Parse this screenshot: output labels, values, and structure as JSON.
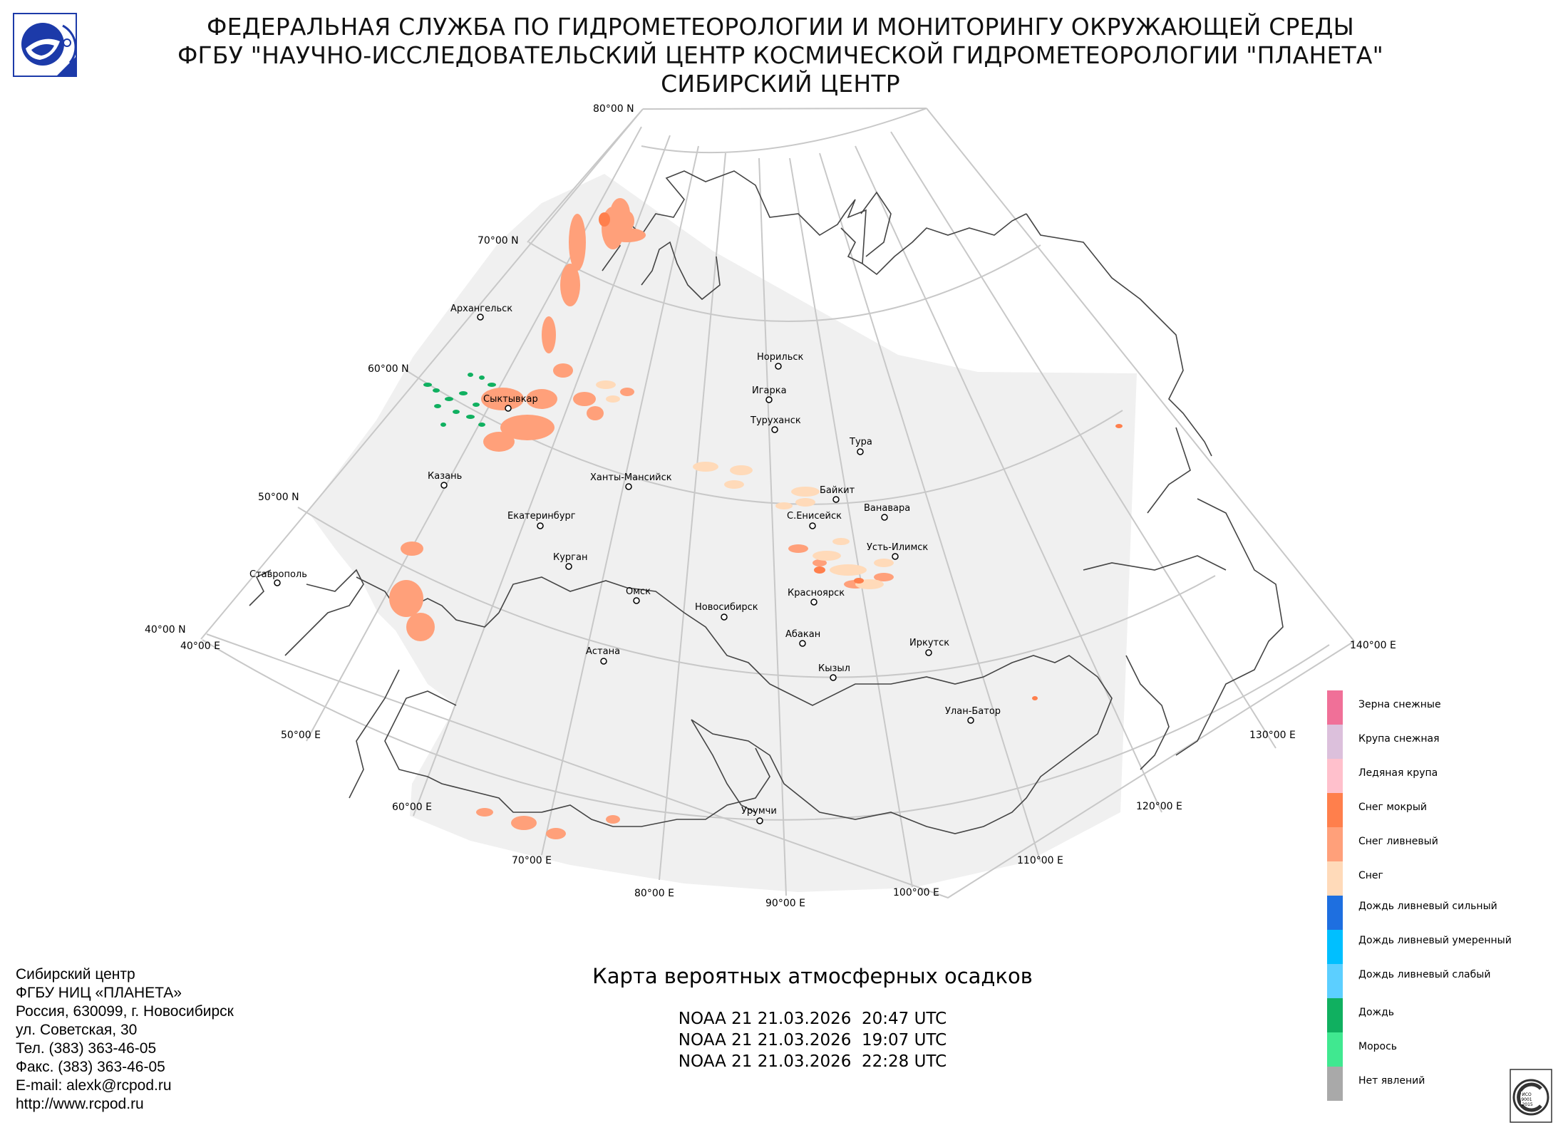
{
  "header": {
    "line1": "ФЕДЕРАЛЬНАЯ СЛУЖБА ПО ГИДРОМЕТЕОРОЛОГИИ И МОНИТОРИНГУ ОКРУЖАЮЩЕЙ СРЕДЫ",
    "line2": "ФГБУ \"НАУЧНО-ИССЛЕДОВАТЕЛЬСКИЙ ЦЕНТР КОСМИЧЕСКОЙ ГИДРОМЕТЕОРОЛОГИИ \"ПЛАНЕТА\"",
    "line3": "СИБИРСКИЙ ЦЕНТР"
  },
  "grid_labels": {
    "lat80": "80°00 N",
    "lat70": "70°00 N",
    "lat60": "60°00 N",
    "lat50": "50°00 N",
    "lat40": "40°00 N",
    "lon40": "40°00 E",
    "lon50": "50°00 E",
    "lon60": "60°00 E",
    "lon70": "70°00 E",
    "lon80": "80°00 E",
    "lon90": "90°00 E",
    "lon100": "100°00 E",
    "lon110": "110°00 E",
    "lon120": "120°00 E",
    "lon130": "130°00 E",
    "lon140": "140°00 E"
  },
  "cities": [
    {
      "name": "Архангельск"
    },
    {
      "name": "Сыктывкар"
    },
    {
      "name": "Казань"
    },
    {
      "name": "Екатеринбург"
    },
    {
      "name": "Ханты-Мансийск"
    },
    {
      "name": "Курган"
    },
    {
      "name": "Ставрополь"
    },
    {
      "name": "Омск"
    },
    {
      "name": "Новосибирск"
    },
    {
      "name": "Астана"
    },
    {
      "name": "Норильск"
    },
    {
      "name": "Игарка"
    },
    {
      "name": "Туруханск"
    },
    {
      "name": "Тура"
    },
    {
      "name": "Байкит"
    },
    {
      "name": "Ванавара"
    },
    {
      "name": "С.Енисейск"
    },
    {
      "name": "Усть-Илимск"
    },
    {
      "name": "Красноярск"
    },
    {
      "name": "Абакан"
    },
    {
      "name": "Кызыл"
    },
    {
      "name": "Иркутск"
    },
    {
      "name": "Улан-Батор"
    },
    {
      "name": "Урумчи"
    }
  ],
  "contact": {
    "line1": "Сибирский центр",
    "line2": "ФГБУ НИЦ «ПЛАНЕТА»",
    "line3": "Россия, 630099, г. Новосибирск",
    "line4": "ул. Советская, 30",
    "line5": "Тел. (383) 363-46-05",
    "line6": "Факс. (383) 363-46-05",
    "line7": "E-mail: alexk@rcpod.ru",
    "line8": "http://www.rcpod.ru"
  },
  "map_title": "Карта вероятных атмосферных осадков",
  "passes": [
    "NOAA 21 21.03.2026  20:47 UTC",
    "NOAA 21 21.03.2026  19:07 UTC",
    "NOAA 21 21.03.2026  22:28 UTC"
  ],
  "legend": [
    {
      "label": "Зерна снежные",
      "color": "#f07098"
    },
    {
      "label": "Крупа снежная",
      "color": "#dcc0dc"
    },
    {
      "label": "Ледяная крупа",
      "color": "#ffc0cc"
    },
    {
      "label": "Снег мокрый",
      "color": "#ff7f4c"
    },
    {
      "label": "Снег ливневый",
      "color": "#ffa07a"
    },
    {
      "label": "Снег",
      "color": "#ffdab9"
    },
    {
      "label": "Дождь ливневый сильный",
      "color": "#1e6fe0"
    },
    {
      "label": "Дождь ливневый умеренный",
      "color": "#00bfff"
    },
    {
      "label": "Дождь ливневый слабый",
      "color": "#5ccfff"
    },
    {
      "label": "Дождь",
      "color": "#10b060"
    },
    {
      "label": "Морось",
      "color": "#40e890"
    },
    {
      "label": "Нет явлений",
      "color": "#a9a9a9"
    }
  ],
  "colors": {
    "coverage": "#f0f0f0",
    "grid": "#c8c8c8",
    "border": "#444444"
  }
}
